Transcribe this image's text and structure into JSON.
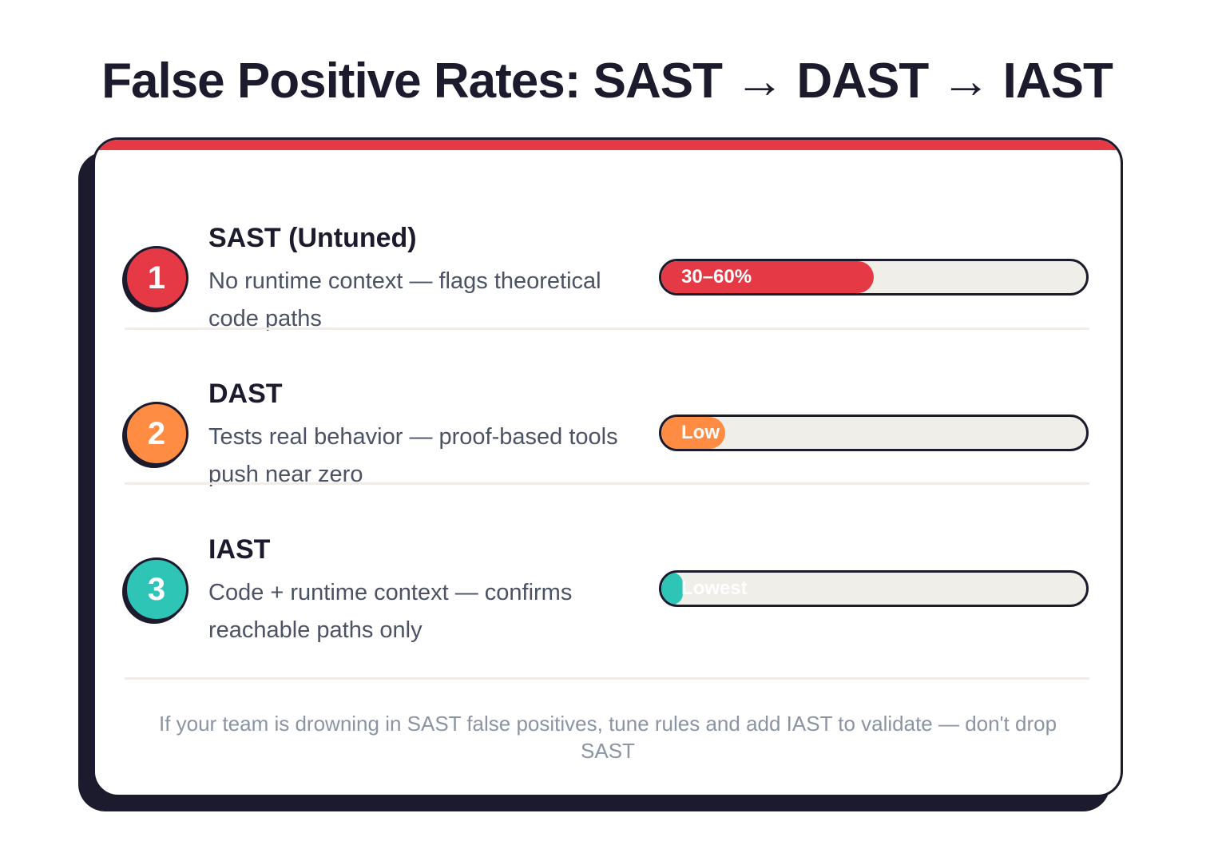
{
  "title": "False Positive Rates: SAST → DAST → IAST",
  "colors": {
    "accent_top": "#e63946",
    "dark": "#1c1b2e",
    "track": "#f0eee9"
  },
  "rows": [
    {
      "number": "1",
      "title": "SAST (Untuned)",
      "description": "No runtime context — flags theoretical code paths",
      "bar_label": "30–60%",
      "fill_percent": 50,
      "color": "#e63946"
    },
    {
      "number": "2",
      "title": "DAST",
      "description": "Tests real behavior — proof-based tools push near zero",
      "bar_label": "Low",
      "fill_percent": 15,
      "color": "#ff8c42"
    },
    {
      "number": "3",
      "title": "IAST",
      "description": "Code + runtime context — confirms reachable paths only",
      "bar_label": "Lowest",
      "fill_percent": 5,
      "color": "#2ec4b6"
    }
  ],
  "footer": "If your team is drowning in SAST false positives, tune rules and add IAST to validate — don't drop SAST"
}
